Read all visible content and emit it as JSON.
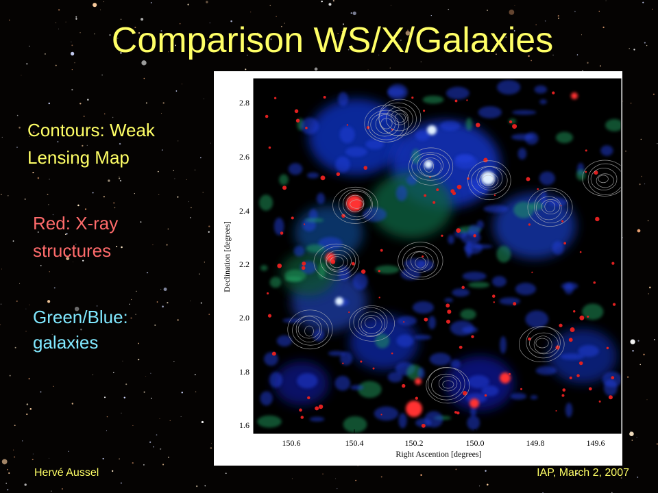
{
  "header": {
    "title": "Comparison WS/X/Galaxies"
  },
  "notes": [
    {
      "lines": [
        "Contours: Weak",
        "Lensing Map"
      ]
    },
    {
      "lines": [
        "Red: X-ray",
        "structures"
      ]
    },
    {
      "lines": [
        "Green/Blue:",
        "galaxies"
      ]
    }
  ],
  "figure": {
    "x_label": "Right Ascention [degrees]",
    "y_label": "Declination [degrees]",
    "x_ticks": [
      "150.6",
      "150.4",
      "150.2",
      "150.0",
      "149.8",
      "149.6"
    ],
    "y_ticks": [
      "2.8",
      "2.6",
      "2.4",
      "2.2",
      "2.0",
      "1.8",
      "1.6"
    ]
  },
  "footer": {
    "author": "Hervé Aussel",
    "venue": "IAP, March 2, 2007"
  }
}
